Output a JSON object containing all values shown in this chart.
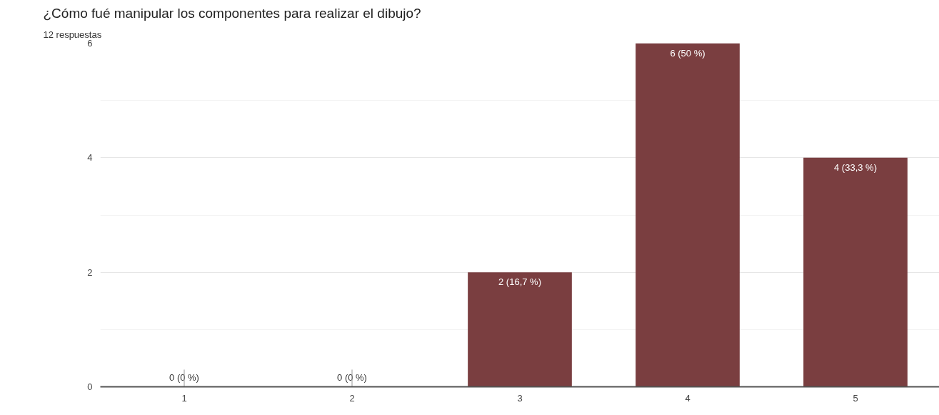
{
  "chart_data": {
    "type": "bar",
    "title": "¿Cómo fué manipular los componentes para realizar el dibujo?",
    "subtitle": "12 respuestas",
    "categories": [
      "1",
      "2",
      "3",
      "4",
      "5"
    ],
    "values": [
      0,
      0,
      2,
      6,
      4
    ],
    "value_labels": [
      "0 (0 %)",
      "0 (0 %)",
      "2 (16,7 %)",
      "6 (50 %)",
      "4 (33,3 %)"
    ],
    "color": "#7a3e40",
    "ylim": [
      0,
      6
    ],
    "yticks": [
      0,
      2,
      4,
      6
    ],
    "grid": "y"
  }
}
